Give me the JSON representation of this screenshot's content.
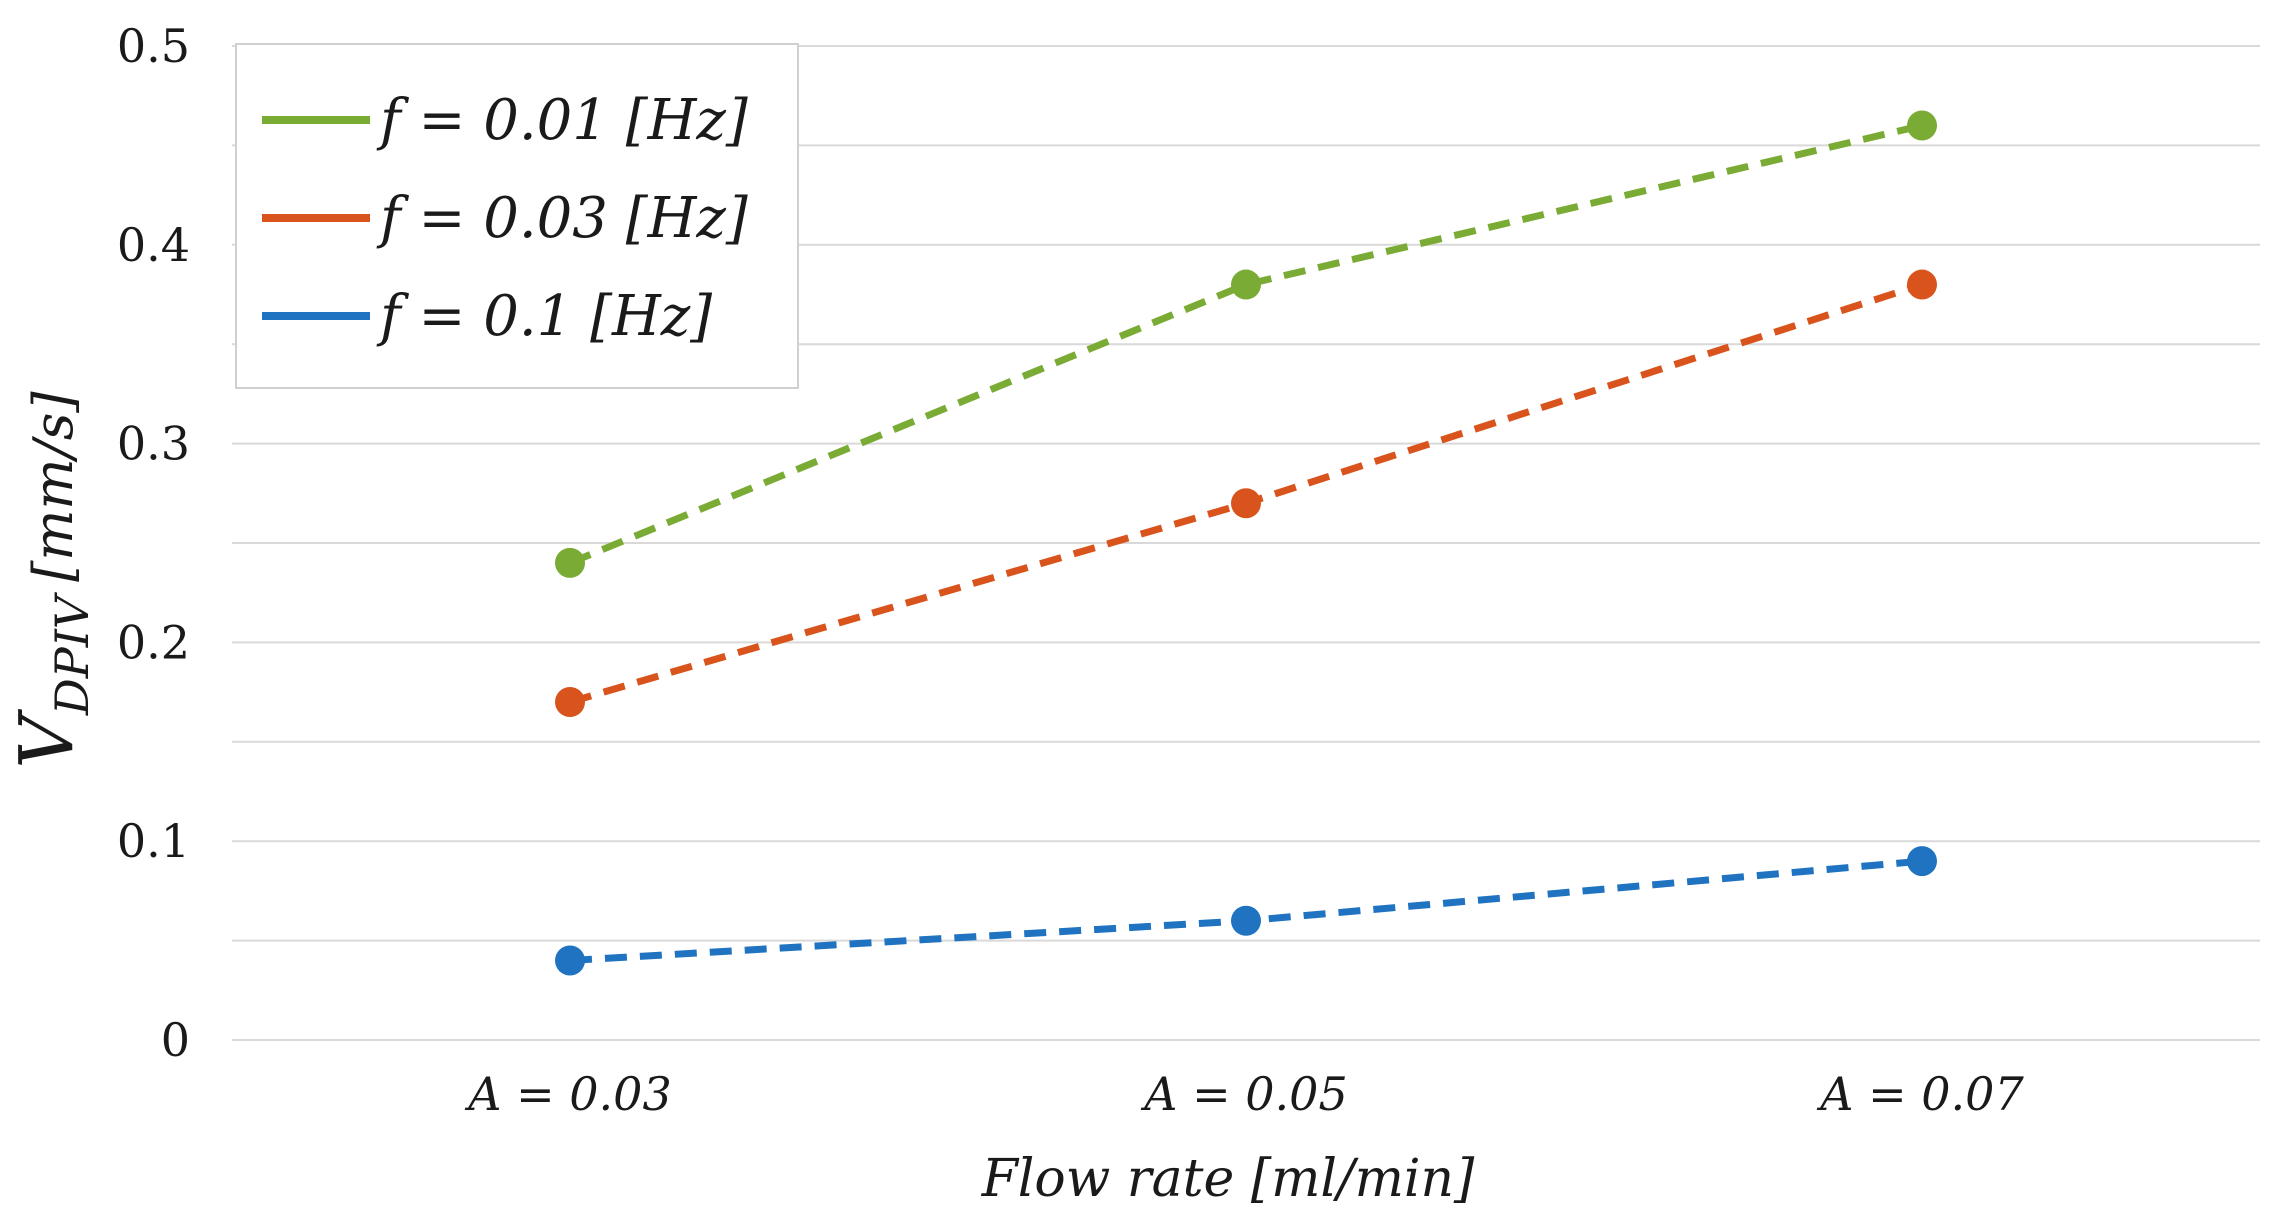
{
  "chart_data": {
    "type": "line",
    "categories": [
      "A = 0.03",
      "A = 0.05",
      "A = 0.07"
    ],
    "series": [
      {
        "name": "f = 0.01 [Hz]",
        "color": "#7aab35",
        "values": [
          0.24,
          0.38,
          0.46
        ]
      },
      {
        "name": "f = 0.03 [Hz]",
        "color": "#d9541d",
        "values": [
          0.17,
          0.27,
          0.38
        ]
      },
      {
        "name": "f = 0.1 [Hz]",
        "color": "#1f73c0",
        "values": [
          0.04,
          0.06,
          0.09
        ]
      }
    ],
    "title": "",
    "xlabel": "Flow rate [ml/min]",
    "ylabel": "V_DPIV [mm/s]",
    "ylabel_main": "V",
    "ylabel_sub": "DPIV",
    "ylabel_unit": "[mm/s]",
    "ylim": [
      0,
      0.5
    ],
    "yticks": [
      0,
      0.1,
      0.2,
      0.3,
      0.4,
      0.5
    ],
    "ytick_labels": [
      "0",
      "0.1",
      "0.2",
      "0.3",
      "0.4",
      "0.5"
    ],
    "minor_grid_step": 0.05,
    "grid": true,
    "line_style": "dashed",
    "markers": "circle",
    "legend_position": "top-left",
    "gridline_color": "#d9d9d9"
  }
}
